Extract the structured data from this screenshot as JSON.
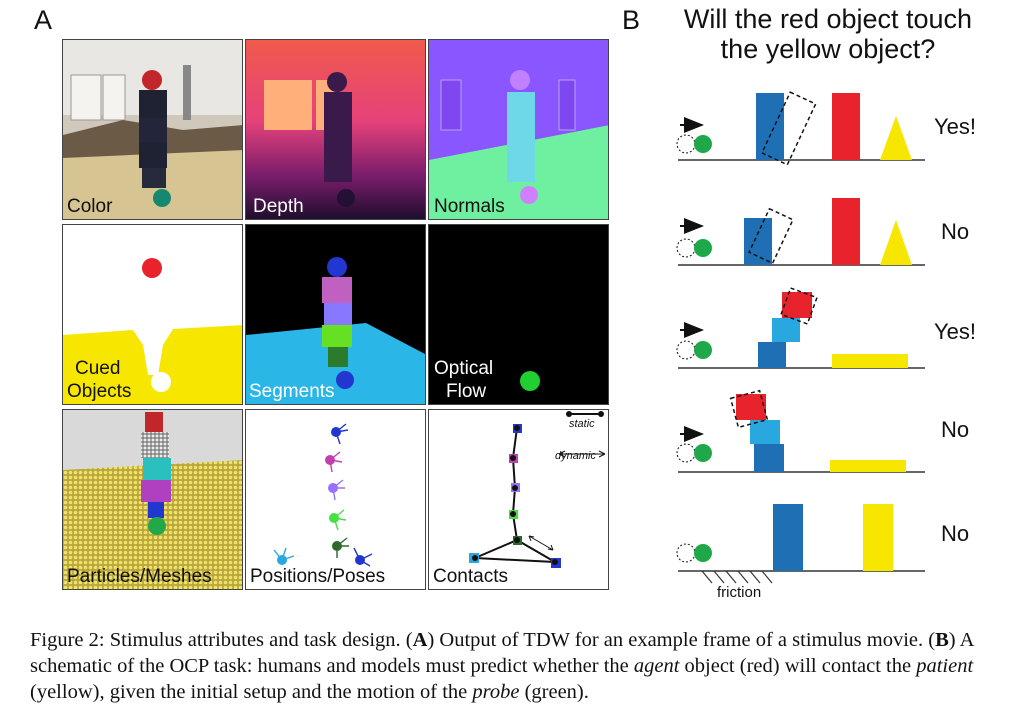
{
  "panel_a": {
    "letter": "A",
    "tiles": [
      {
        "label": "Color"
      },
      {
        "label": "Depth"
      },
      {
        "label": "Normals"
      },
      {
        "label_line1": "Cued",
        "label_line2": "Objects"
      },
      {
        "label": "Segments"
      },
      {
        "label_line1": "Optical",
        "label_line2": "Flow"
      },
      {
        "label": "Particles/Meshes"
      },
      {
        "label": "Positions/Poses"
      },
      {
        "label": "Contacts",
        "legend_static": "static",
        "legend_dynamic": "dynamic"
      }
    ]
  },
  "panel_b": {
    "letter": "B",
    "question_line1": "Will the red object touch",
    "question_line2": "the yellow object?",
    "rows": [
      {
        "answer": "Yes!"
      },
      {
        "answer": "No"
      },
      {
        "answer": "Yes!"
      },
      {
        "answer": "No"
      },
      {
        "answer": "No"
      }
    ],
    "friction_label": "friction"
  },
  "caption": {
    "prefix": "Figure 2: Stimulus attributes and task design. (",
    "a_letter": "A",
    "a_text": ") Output of TDW for an example frame of a stimulus movie. (",
    "b_letter": "B",
    "b_text": ") A schematic of the OCP task: humans and models must predict whether the ",
    "agent": "agent",
    "mid1": " object (red) will contact the ",
    "patient": "patient",
    "mid2": " (yellow), given the initial setup and the motion of the ",
    "probe": "probe",
    "suffix": " (green)."
  },
  "colors": {
    "red": "#e8232b",
    "yellow": "#f7e600",
    "blue": "#1f6fb5",
    "light_blue": "#29a8e0",
    "green": "#1fa84a"
  }
}
